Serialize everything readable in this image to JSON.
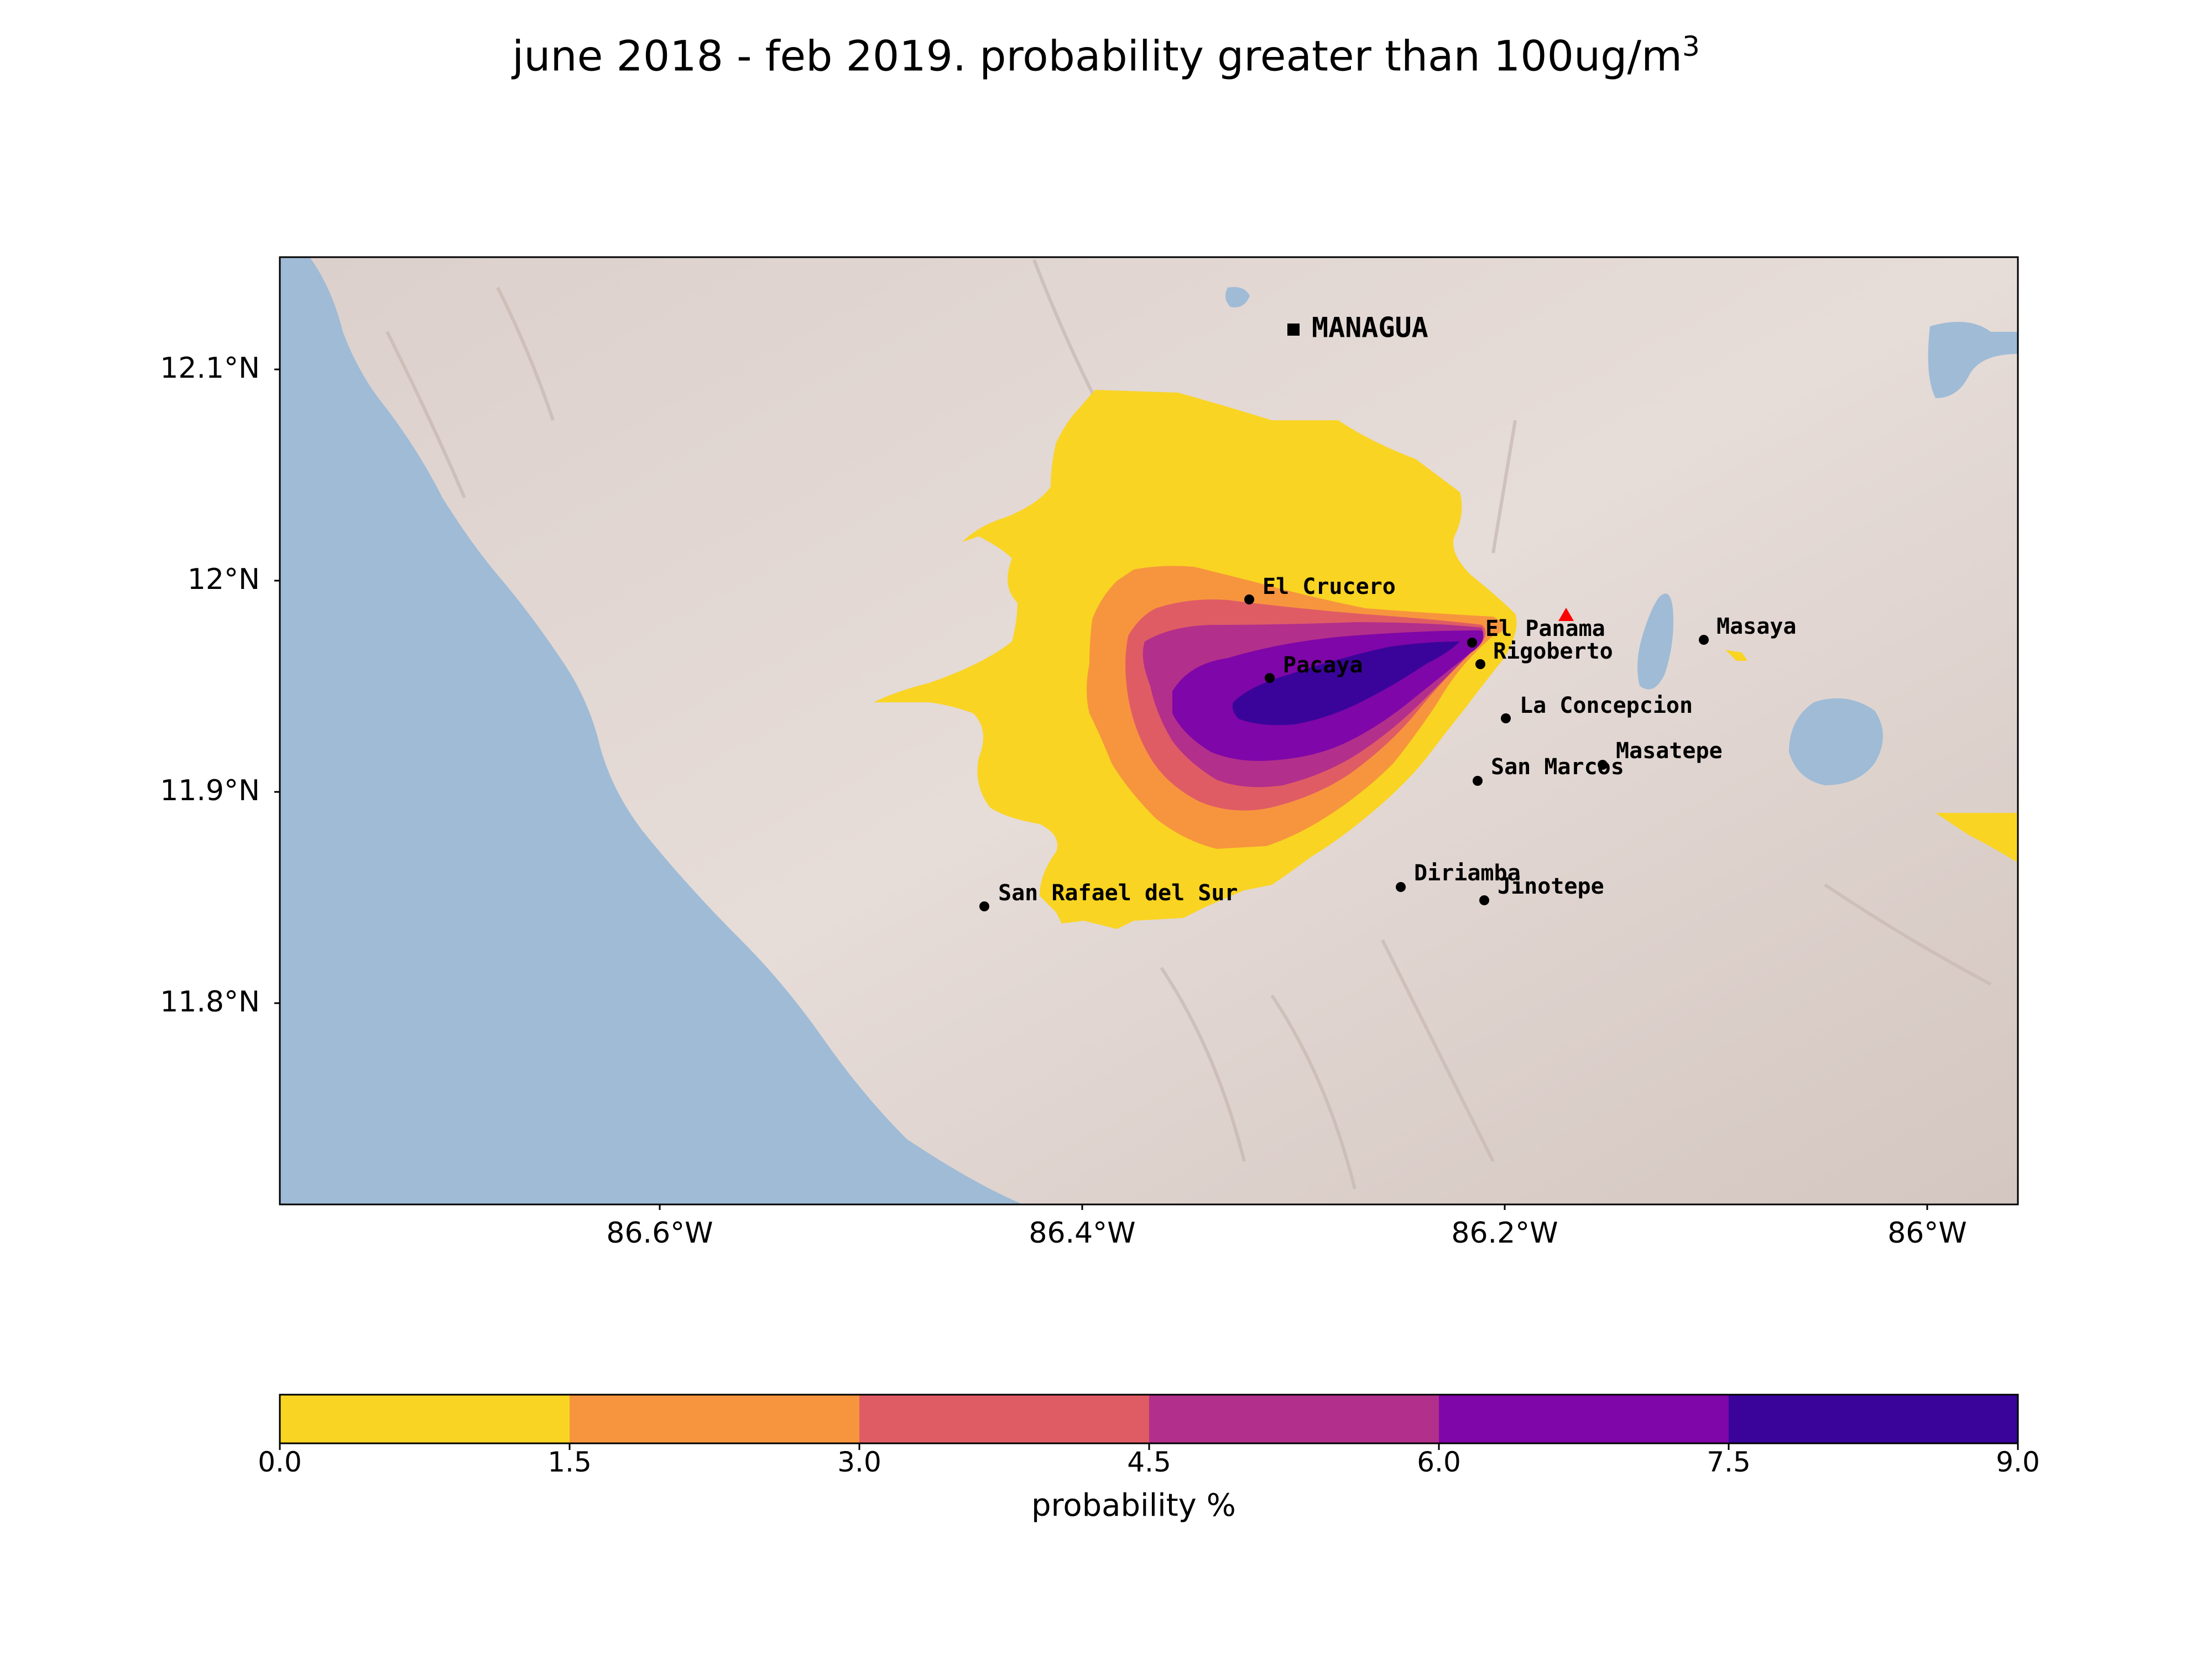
{
  "title": {
    "main": "june 2018 - feb 2019. probability greater than 100ug/m",
    "sup": "3"
  },
  "map": {
    "lat_ticks": [
      "12.1°N",
      "12°N",
      "11.9°N",
      "11.8°N"
    ],
    "lon_ticks": [
      "86.6°W",
      "86.4°W",
      "86.2°W",
      "86°W"
    ],
    "capital": "MANAGUA",
    "places": [
      {
        "name": "El Crucero"
      },
      {
        "name": "El Panama"
      },
      {
        "name": "Rigoberto"
      },
      {
        "name": "Pacaya"
      },
      {
        "name": "La Concepcion"
      },
      {
        "name": "Masaya"
      },
      {
        "name": "Masatepe"
      },
      {
        "name": "San Marcos"
      },
      {
        "name": "Diriamba"
      },
      {
        "name": "Jinotepe"
      },
      {
        "name": "San Rafael del Sur"
      }
    ],
    "volcano_marker": "red-triangle-icon",
    "colors": {
      "water": "#9fbbd6",
      "land": "#d8ccc8",
      "volcano": "#ff0000"
    }
  },
  "colorbar": {
    "title": "probability %",
    "ticks": [
      "0.0",
      "1.5",
      "3.0",
      "4.5",
      "6.0",
      "7.5",
      "9.0"
    ],
    "bins": [
      {
        "range": "0.0-1.5",
        "color": "#f9d423"
      },
      {
        "range": "1.5-3.0",
        "color": "#f7953e"
      },
      {
        "range": "3.0-4.5",
        "color": "#e05c65"
      },
      {
        "range": "4.5-6.0",
        "color": "#b22f8c"
      },
      {
        "range": "6.0-7.5",
        "color": "#7f06a8"
      },
      {
        "range": "7.5-9.0",
        "color": "#3a049a"
      }
    ]
  }
}
